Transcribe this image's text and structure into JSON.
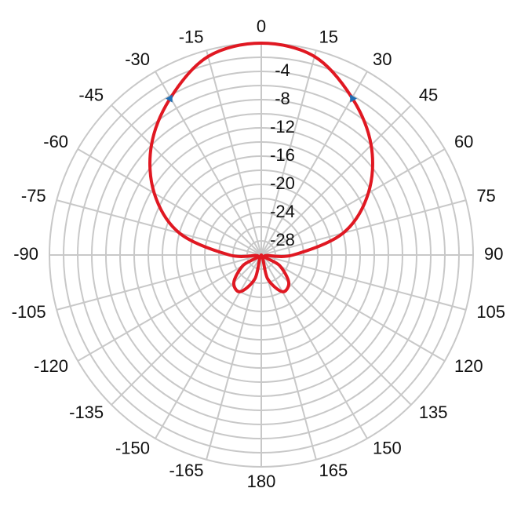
{
  "chart_data": {
    "type": "polar",
    "x": [
      -165,
      -150,
      -135,
      -120,
      -105,
      -90,
      -75,
      -60,
      -45,
      -30,
      -15,
      0,
      15,
      30,
      45,
      60,
      75,
      90,
      105,
      120,
      135,
      150,
      165,
      180
    ],
    "values": [
      -26.5,
      -24,
      -24.5,
      -27,
      -29.5,
      -25.5,
      -18,
      -12.5,
      -8,
      -4.3,
      -0.9,
      0,
      -0.9,
      -4.3,
      -8,
      -12.5,
      -18,
      -25.5,
      -29.5,
      -27,
      -24.5,
      -24,
      -26.5,
      -30
    ],
    "color": "#e01822",
    "markers": {
      "x": [
        -30,
        30
      ],
      "values": [
        -4.3,
        -4.3
      ],
      "color": "#1f6fb5"
    },
    "rlim": [
      -30,
      0
    ],
    "rticks": [
      -4,
      -8,
      -12,
      -16,
      -20,
      -24,
      -28
    ],
    "rminor": [
      0,
      -2,
      -6,
      -10,
      -14,
      -18,
      -22,
      -26
    ],
    "angle_ticks": [
      0,
      15,
      30,
      45,
      60,
      75,
      90,
      105,
      120,
      135,
      150,
      165,
      180,
      -165,
      -150,
      -135,
      -120,
      -105,
      -90,
      -75,
      -60,
      -45,
      -30,
      -15
    ],
    "grid": true,
    "grid_color": "#c8c8c8"
  }
}
